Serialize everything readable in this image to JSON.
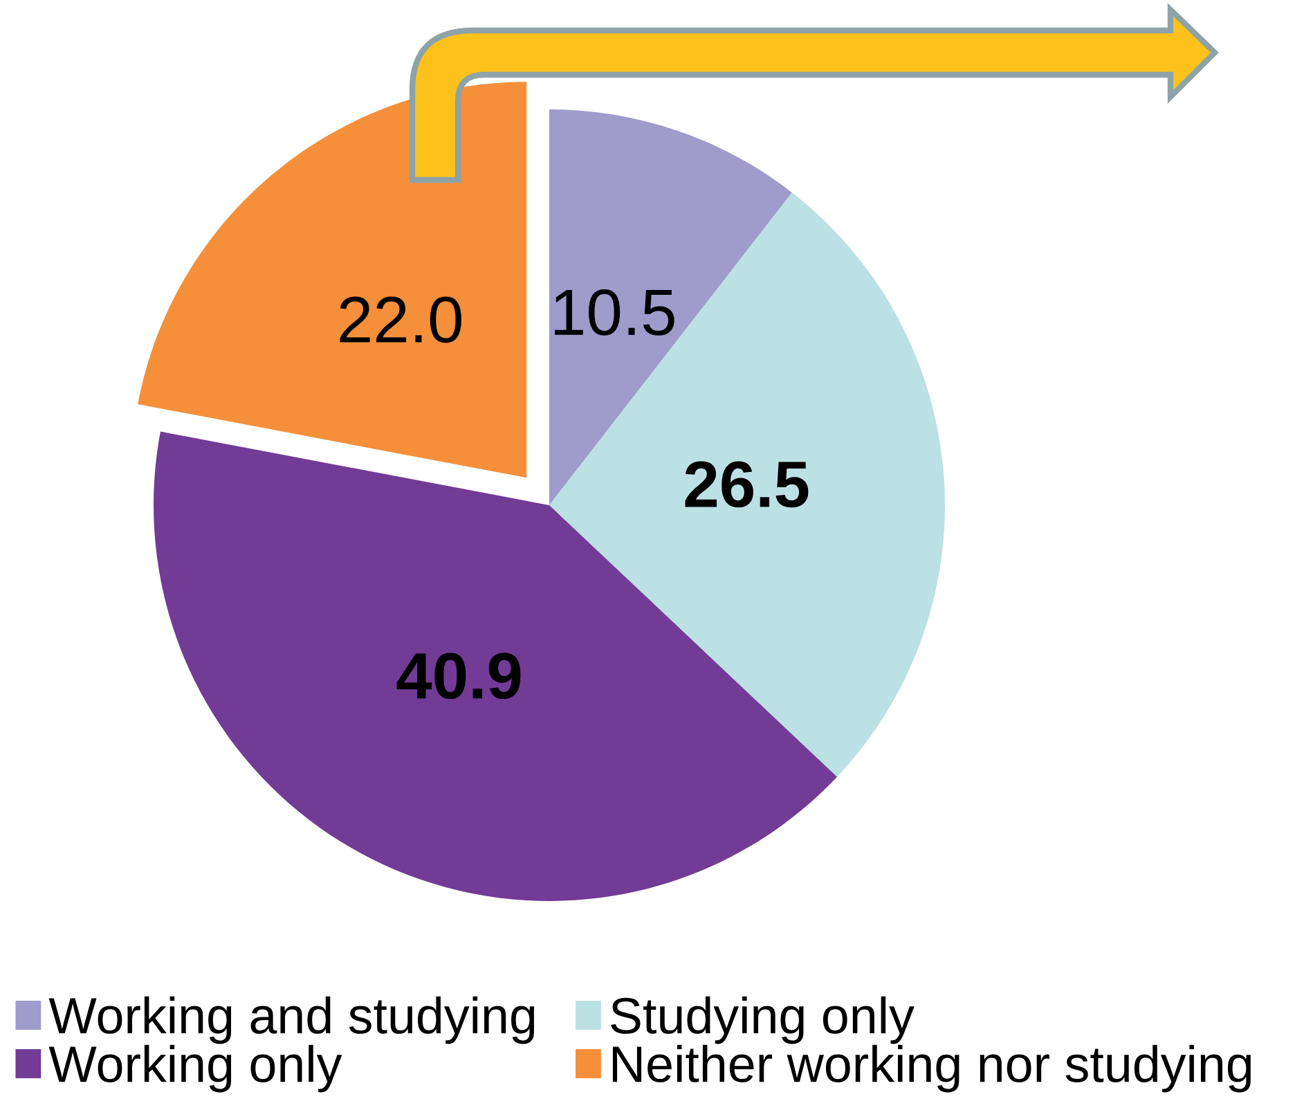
{
  "chart_data": {
    "type": "pie",
    "categories": [
      "Working and studying",
      "Studying only",
      "Working only",
      "Neither working nor studying"
    ],
    "values": [
      10.5,
      26.5,
      40.9,
      22.0
    ],
    "value_labels": [
      "10.5",
      "26.5",
      "40.9",
      "22.0"
    ],
    "colors": [
      "#9f9bcb",
      "#bce1e4",
      "#723b96",
      "#f58f3a"
    ],
    "legend": "bottom"
  }
}
